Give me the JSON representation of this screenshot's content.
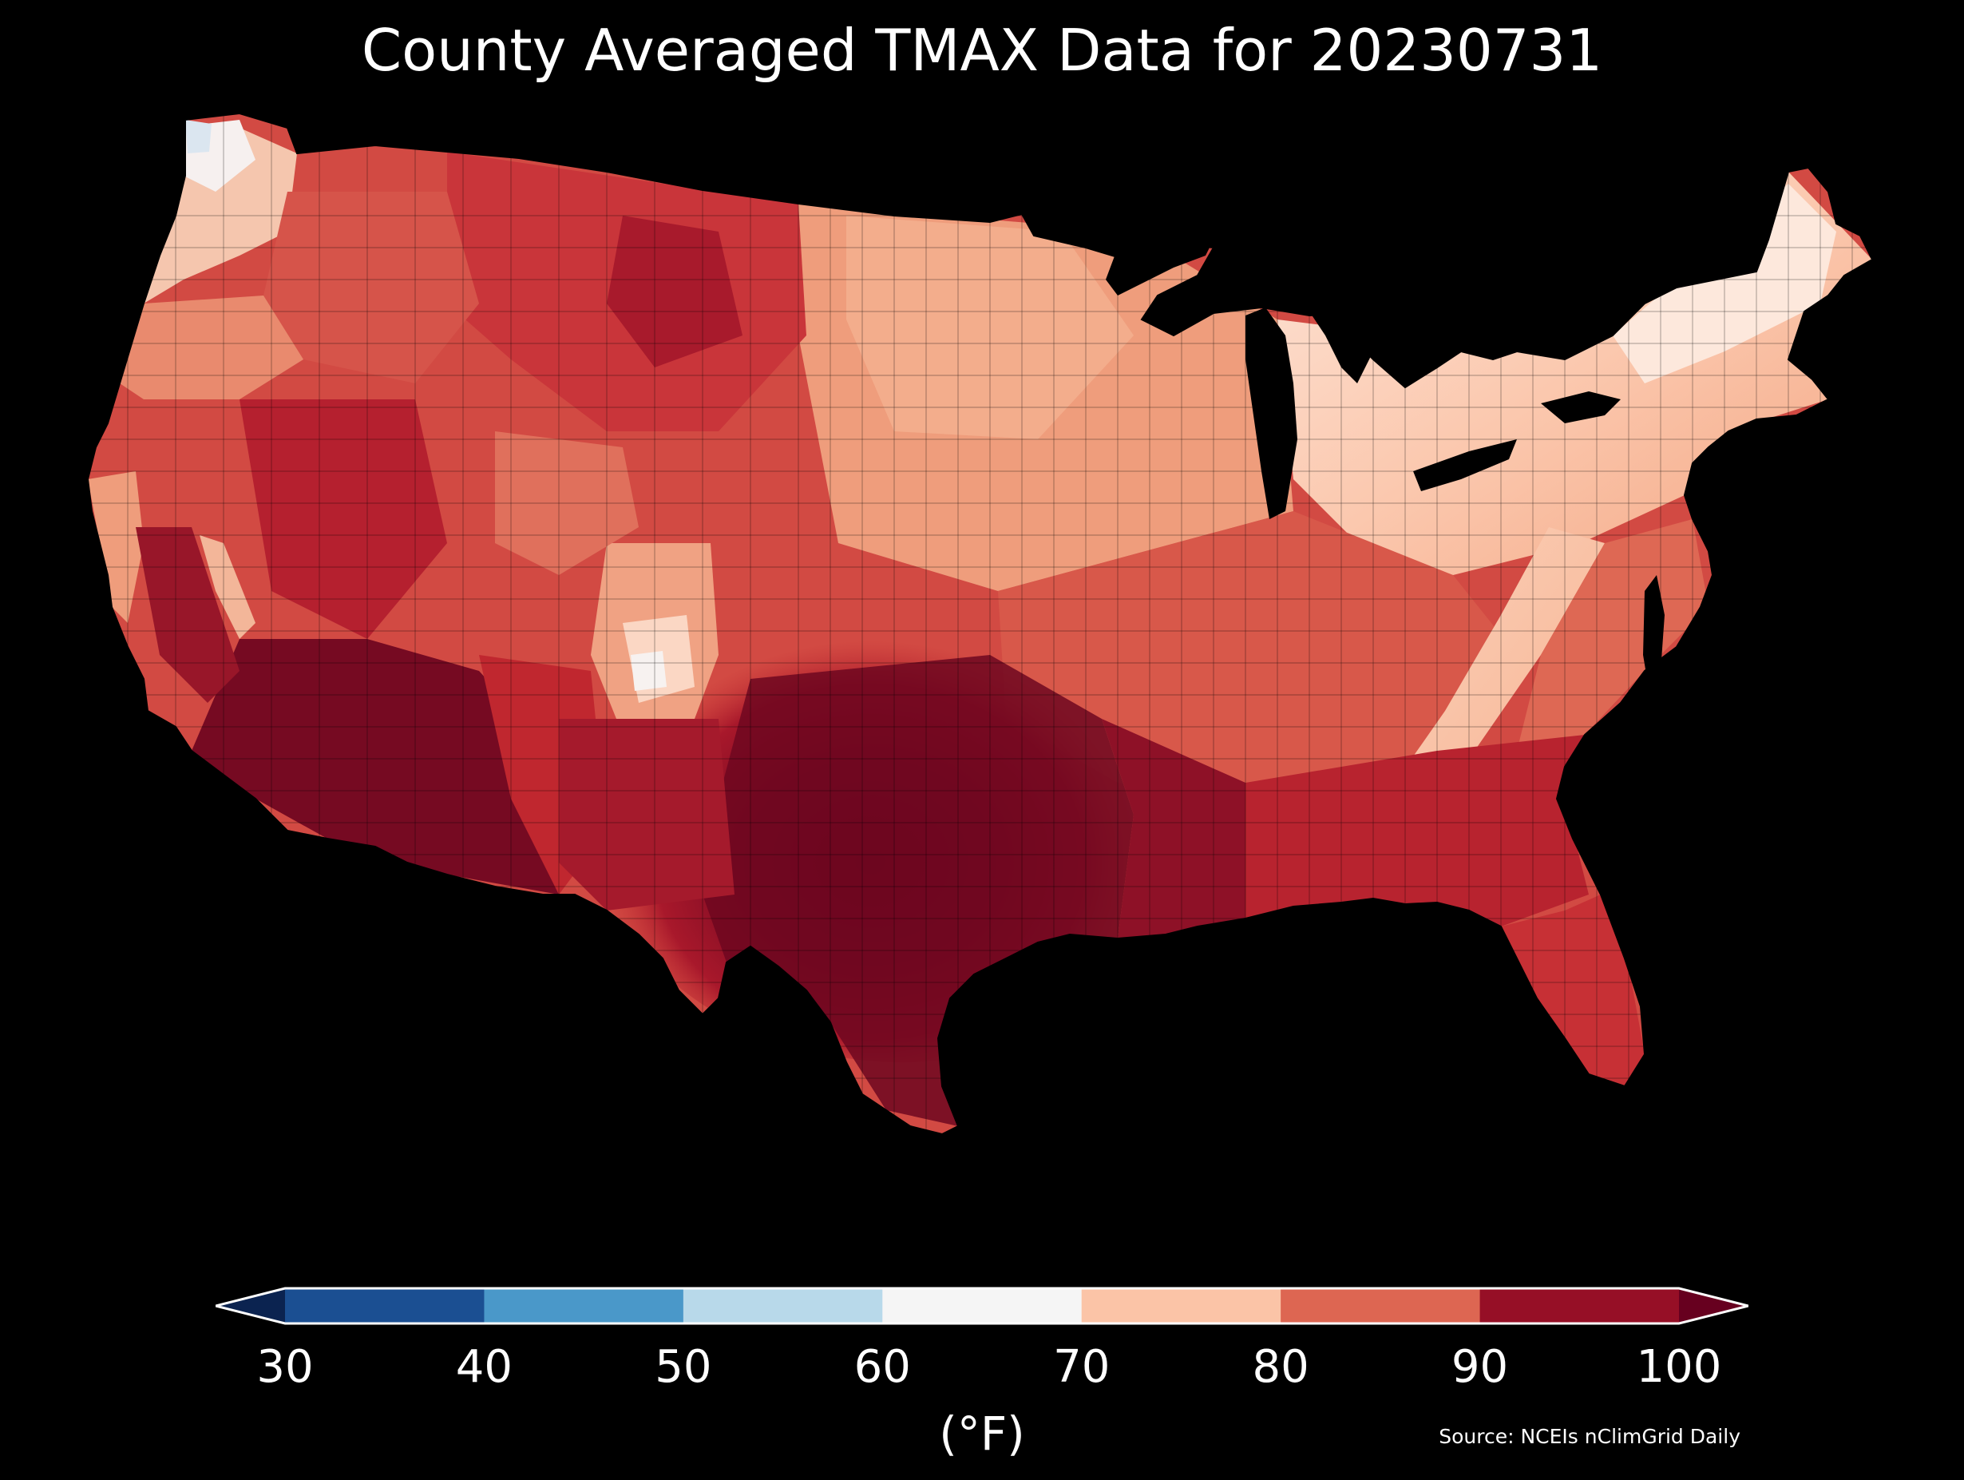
{
  "title": "County Averaged TMAX Data for 20230731",
  "colorbar": {
    "ticks": [
      "30",
      "40",
      "50",
      "60",
      "70",
      "80",
      "90",
      "100"
    ],
    "units": "(°F)",
    "bins": [
      {
        "from": 30,
        "to": 40,
        "color": "#1b4f92"
      },
      {
        "from": 40,
        "to": 50,
        "color": "#4a98c9"
      },
      {
        "from": 50,
        "to": 60,
        "color": "#b8d9ea"
      },
      {
        "from": 60,
        "to": 70,
        "color": "#f5f5f5"
      },
      {
        "from": 70,
        "to": 80,
        "color": "#fbc4a7"
      },
      {
        "from": 80,
        "to": 90,
        "color": "#dd6652"
      },
      {
        "from": 90,
        "to": 100,
        "color": "#960f26"
      }
    ],
    "under_color": "#0b2350",
    "over_color": "#67001f",
    "extend": "both"
  },
  "source": "Source: NCEIs nClimGrid Daily",
  "map": {
    "region": "Contiguous United States",
    "variable": "TMAX",
    "unit": "°F",
    "aggregation": "County averaged",
    "regions": [
      {
        "name": "Pacific Northwest coast",
        "color": "#f6eef0"
      },
      {
        "name": "Northern Rockies / Great Plains",
        "color": "#d94f45"
      },
      {
        "name": "Upper Midwest",
        "color": "#f2a785"
      },
      {
        "name": "Great Lakes / Northeast",
        "color": "#fbcdb6"
      },
      {
        "name": "Appalachians",
        "color": "#f7c0a3"
      },
      {
        "name": "Southern Plains / Texas",
        "color": "#6e0720"
      },
      {
        "name": "Desert Southwest",
        "color": "#760a22"
      },
      {
        "name": "Southeast / Gulf Coast",
        "color": "#b8232f"
      },
      {
        "name": "Florida",
        "color": "#c73035"
      }
    ]
  }
}
